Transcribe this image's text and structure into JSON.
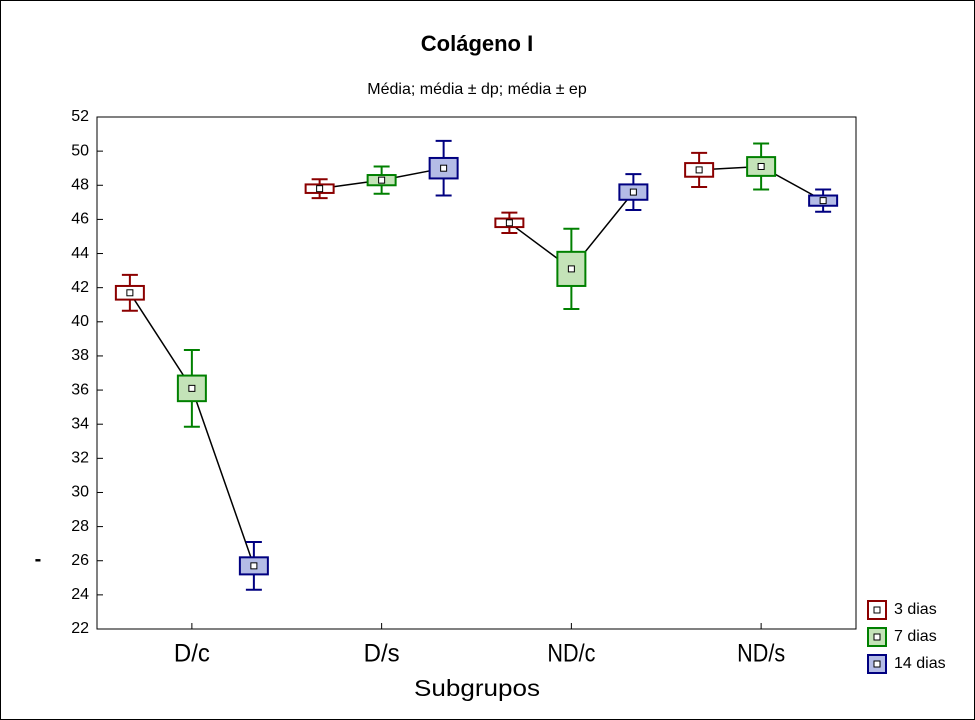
{
  "chart_data": {
    "type": "box",
    "title": "Colágeno I",
    "subtitle": "Média; média ± dp; média ± ep",
    "x_label": "Subgrupos",
    "y_label": "-",
    "categories": [
      "D/c",
      "D/s",
      "ND/c",
      "ND/s"
    ],
    "ylim": [
      22,
      52
    ],
    "yticks": [
      22,
      24,
      26,
      28,
      30,
      32,
      34,
      36,
      38,
      40,
      42,
      44,
      46,
      48,
      50,
      52
    ],
    "legend": "lower right",
    "series": [
      {
        "name": "3 dias",
        "color": "#8b0000",
        "fill": "#ffffff",
        "values": [
          41.7,
          47.8,
          45.8,
          48.9
        ],
        "se": [
          0.4,
          0.25,
          0.25,
          0.4
        ],
        "sd": [
          1.05,
          0.55,
          0.6,
          1.0
        ]
      },
      {
        "name": "7 dias",
        "color": "#008000",
        "fill": "#c4e3b8",
        "values": [
          36.1,
          48.3,
          43.1,
          49.1
        ],
        "se": [
          0.75,
          0.3,
          1.0,
          0.55
        ],
        "sd": [
          2.25,
          0.8,
          2.35,
          1.35
        ]
      },
      {
        "name": "14 dias",
        "color": "#000080",
        "fill": "#b4bce6",
        "values": [
          25.7,
          49.0,
          47.6,
          47.1
        ],
        "se": [
          0.5,
          0.6,
          0.45,
          0.3
        ],
        "sd": [
          1.4,
          1.6,
          1.05,
          0.65
        ]
      }
    ]
  }
}
